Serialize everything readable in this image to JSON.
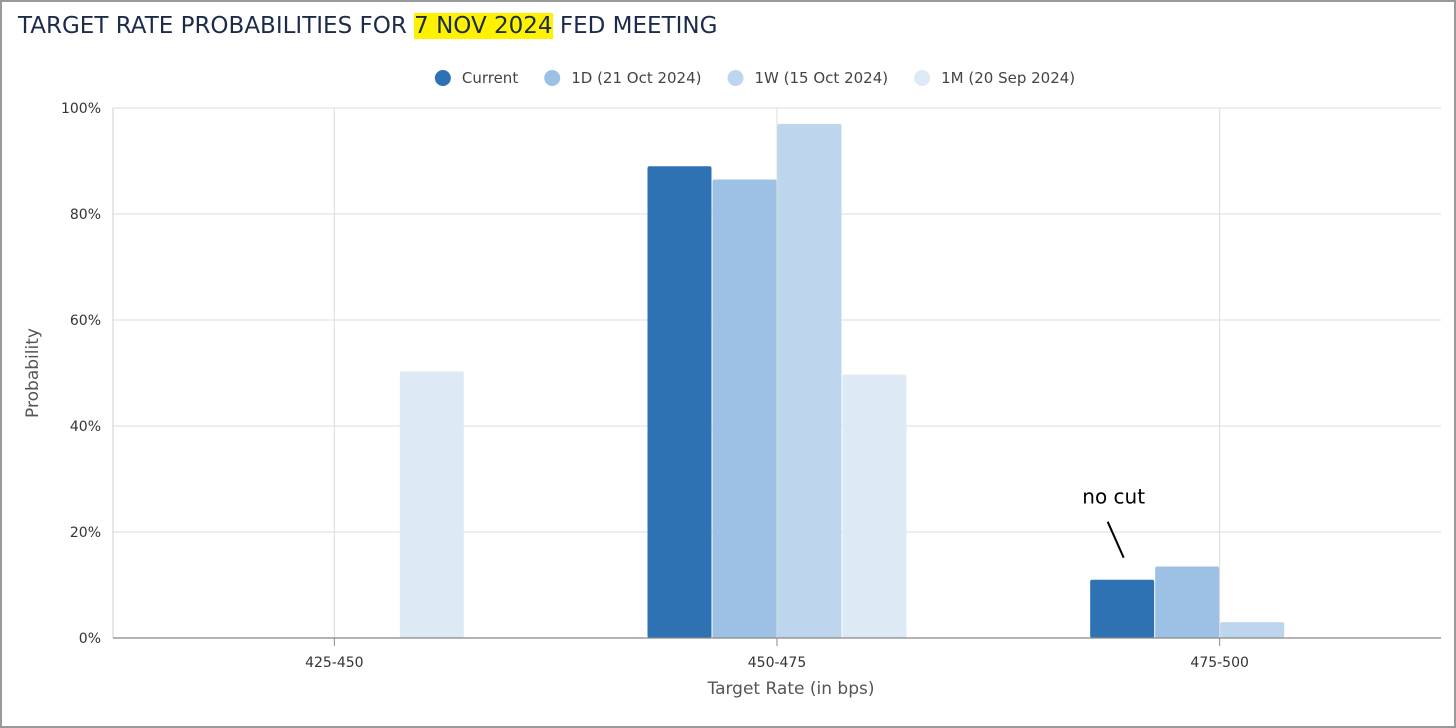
{
  "title": {
    "before": "TARGET RATE PROBABILITIES FOR ",
    "highlight": "7 NOV 2024",
    "after": " FED MEETING"
  },
  "colors": {
    "highlight": "#fff200",
    "series": [
      "#2e72b4",
      "#9dc1e5",
      "#bdd6ee",
      "#ddeaf6"
    ]
  },
  "chart_data": {
    "type": "bar",
    "title": "TARGET RATE PROBABILITIES FOR 7 NOV 2024 FED MEETING",
    "xlabel": "Target Rate (in bps)",
    "ylabel": "Probability",
    "categories": [
      "425-450",
      "450-475",
      "475-500"
    ],
    "ylim": [
      0,
      100
    ],
    "yticks": [
      "0%",
      "20%",
      "40%",
      "60%",
      "80%",
      "100%"
    ],
    "grid": true,
    "legend_position": "top-center",
    "series": [
      {
        "name": "Current",
        "values": [
          0,
          89.0,
          11.0
        ]
      },
      {
        "name": "1D (21 Oct 2024)",
        "values": [
          0,
          86.5,
          13.5
        ]
      },
      {
        "name": "1W (15 Oct 2024)",
        "values": [
          0,
          97.0,
          3.0
        ]
      },
      {
        "name": "1M (20 Sep 2024)",
        "values": [
          50.3,
          49.7,
          0
        ]
      }
    ],
    "annotations": [
      {
        "text": "no cut",
        "category": "475-500",
        "series": "Current"
      }
    ]
  }
}
